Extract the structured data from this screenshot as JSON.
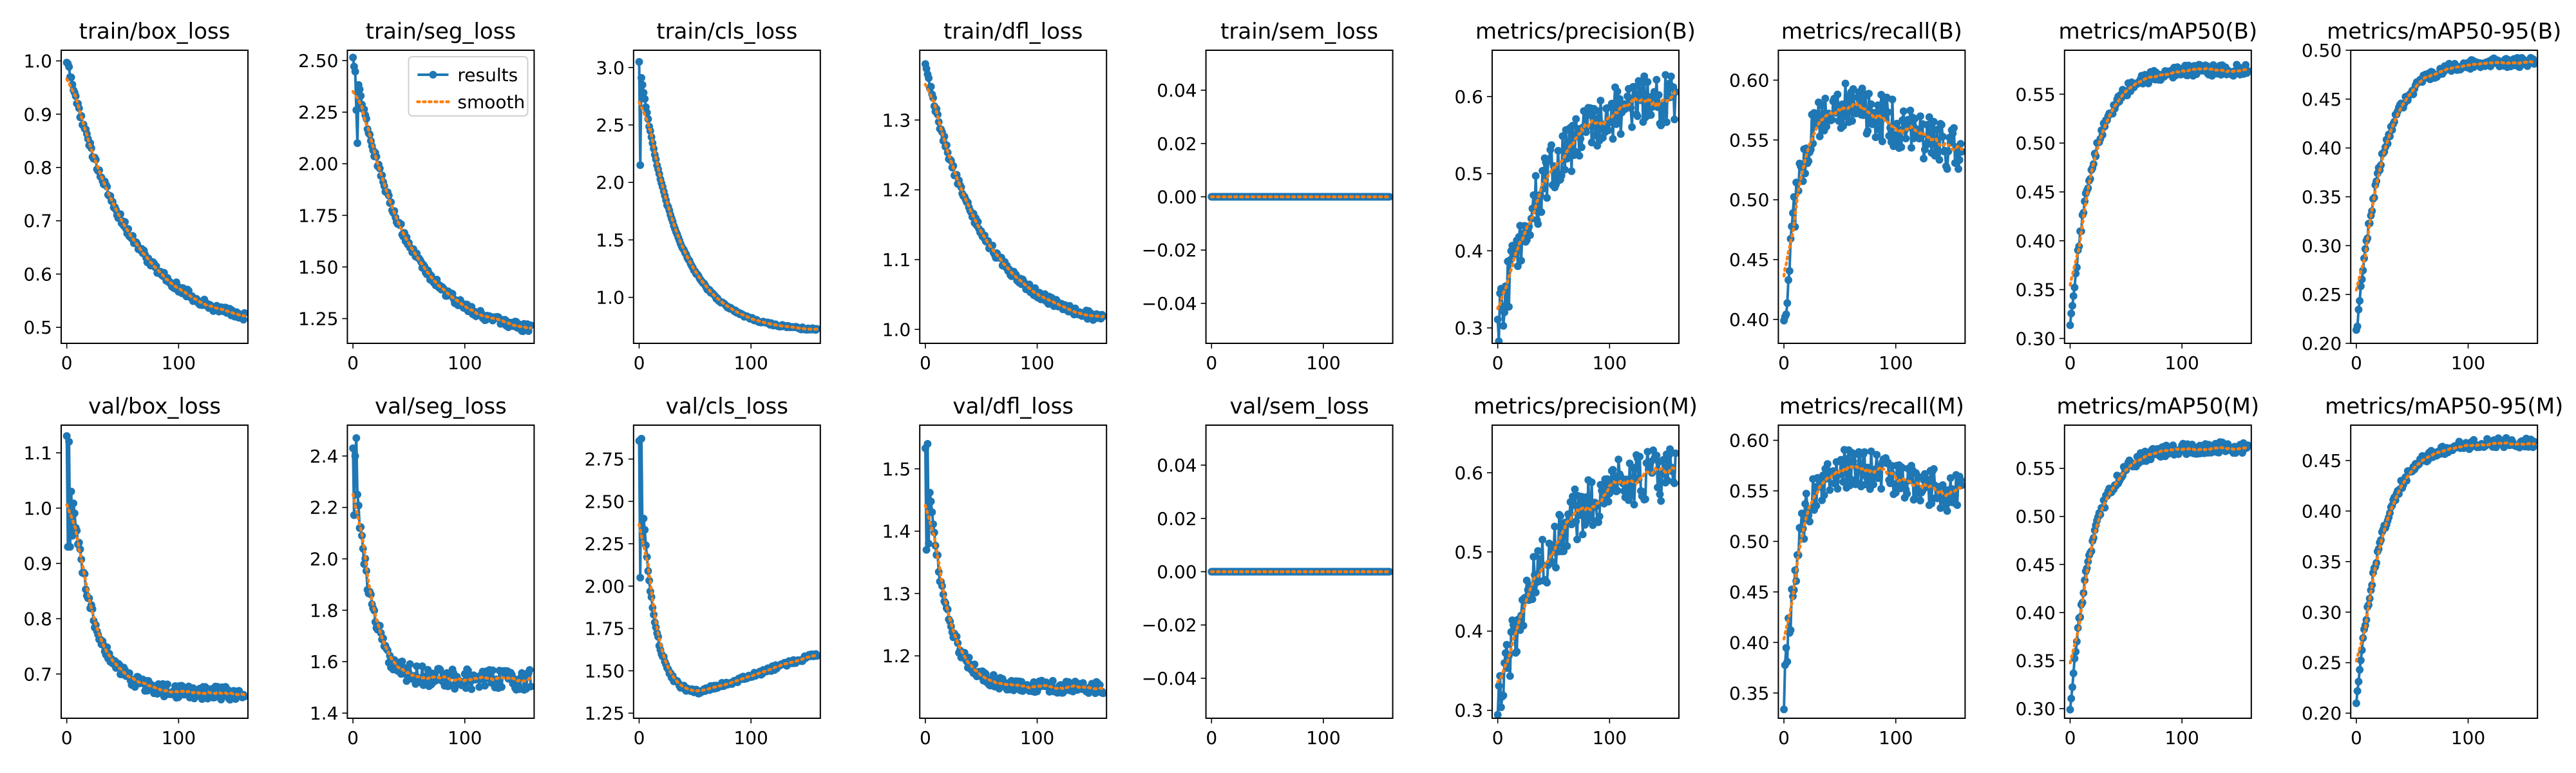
{
  "colors": {
    "results": "#1f77b4",
    "smooth": "#ff7f0e",
    "axis": "#000000",
    "background": "#ffffff"
  },
  "legend": {
    "results": "results",
    "smooth": "smooth",
    "panel": 1
  },
  "chart_data": [
    {
      "type": "line",
      "title": "train/box_loss",
      "ylim": [
        0.47,
        1.02
      ],
      "yticks": [
        "0.5",
        "0.6",
        "0.7",
        "0.8",
        "0.9",
        "1.0"
      ],
      "xlim": [
        -5,
        162
      ],
      "xticks": [
        "0",
        "100"
      ],
      "shape": {
        "kind": "decay",
        "start": 1.0,
        "end": 0.49,
        "k": 0.018,
        "noise": 0.008,
        "points": 160
      },
      "series": [
        {
          "name": "results"
        },
        {
          "name": "smooth"
        }
      ]
    },
    {
      "type": "line",
      "title": "train/seg_loss",
      "ylim": [
        1.13,
        2.55
      ],
      "yticks": [
        "1.25",
        "1.50",
        "1.75",
        "2.00",
        "2.25",
        "2.50"
      ],
      "xlim": [
        -5,
        162
      ],
      "xticks": [
        "0",
        "100"
      ],
      "shape": {
        "kind": "decay",
        "start": 2.52,
        "end": 1.16,
        "k": 0.022,
        "noise": 0.02,
        "spikes": [
          [
            3,
            2.26
          ],
          [
            4,
            2.1
          ]
        ],
        "points": 160
      },
      "series": [
        {
          "name": "results"
        },
        {
          "name": "smooth"
        }
      ]
    },
    {
      "type": "line",
      "title": "train/cls_loss",
      "ylim": [
        0.6,
        3.15
      ],
      "yticks": [
        "1.0",
        "1.5",
        "2.0",
        "2.5",
        "3.0"
      ],
      "xlim": [
        -5,
        162
      ],
      "xticks": [
        "0",
        "100"
      ],
      "shape": {
        "kind": "decay",
        "start": 3.05,
        "end": 0.7,
        "k": 0.03,
        "noise": 0.01,
        "spikes": [
          [
            1,
            2.15
          ]
        ],
        "points": 160
      },
      "series": [
        {
          "name": "results"
        },
        {
          "name": "smooth"
        }
      ]
    },
    {
      "type": "line",
      "title": "train/dfl_loss",
      "ylim": [
        0.98,
        1.4
      ],
      "yticks": [
        "1.0",
        "1.1",
        "1.2",
        "1.3"
      ],
      "xlim": [
        -5,
        162
      ],
      "xticks": [
        "0",
        "100"
      ],
      "shape": {
        "kind": "decay",
        "start": 1.38,
        "end": 1.0,
        "k": 0.02,
        "noise": 0.006,
        "points": 160
      },
      "series": [
        {
          "name": "results"
        },
        {
          "name": "smooth"
        }
      ]
    },
    {
      "type": "line",
      "title": "train/sem_loss",
      "ylim": [
        -0.055,
        0.055
      ],
      "yticks": [
        "−0.04",
        "−0.02",
        "0.00",
        "0.02",
        "0.04"
      ],
      "ytickvals": [
        -0.04,
        -0.02,
        0,
        0.02,
        0.04
      ],
      "xlim": [
        -5,
        162
      ],
      "xticks": [
        "0",
        "100"
      ],
      "shape": {
        "kind": "flat",
        "value": 0.0,
        "points": 160
      },
      "series": [
        {
          "name": "results"
        },
        {
          "name": "smooth"
        }
      ]
    },
    {
      "type": "line",
      "title": "metrics/precision(B)",
      "ylim": [
        0.28,
        0.66
      ],
      "yticks": [
        "0.3",
        "0.4",
        "0.5",
        "0.6"
      ],
      "xlim": [
        -5,
        162
      ],
      "xticks": [
        "0",
        "100"
      ],
      "shape": {
        "kind": "rise",
        "start": 0.3,
        "end": 0.61,
        "k": 0.022,
        "noise": 0.035,
        "points": 160
      },
      "series": [
        {
          "name": "results"
        },
        {
          "name": "smooth"
        }
      ]
    },
    {
      "type": "line",
      "title": "metrics/recall(B)",
      "ylim": [
        0.38,
        0.625
      ],
      "yticks": [
        "0.40",
        "0.45",
        "0.50",
        "0.55",
        "0.60"
      ],
      "xlim": [
        -5,
        162
      ],
      "xticks": [
        "0",
        "100"
      ],
      "shape": {
        "kind": "hump",
        "start": 0.39,
        "peak": 0.58,
        "end": 0.54,
        "k": 0.08,
        "noise": 0.02,
        "points": 160
      },
      "series": [
        {
          "name": "results"
        },
        {
          "name": "smooth"
        }
      ]
    },
    {
      "type": "line",
      "title": "metrics/mAP50(B)",
      "ylim": [
        0.295,
        0.595
      ],
      "yticks": [
        "0.30",
        "0.35",
        "0.40",
        "0.45",
        "0.50",
        "0.55"
      ],
      "xlim": [
        -5,
        162
      ],
      "xticks": [
        "0",
        "100"
      ],
      "shape": {
        "kind": "rise",
        "start": 0.31,
        "end": 0.575,
        "k": 0.05,
        "noise": 0.006,
        "points": 160
      },
      "series": [
        {
          "name": "results"
        },
        {
          "name": "smooth"
        }
      ]
    },
    {
      "type": "line",
      "title": "metrics/mAP50-95(B)",
      "ylim": [
        0.2,
        0.5
      ],
      "yticks": [
        "0.20",
        "0.25",
        "0.30",
        "0.35",
        "0.40",
        "0.45",
        "0.50"
      ],
      "xlim": [
        -5,
        162
      ],
      "xticks": [
        "0",
        "100"
      ],
      "shape": {
        "kind": "rise",
        "start": 0.21,
        "end": 0.488,
        "k": 0.045,
        "noise": 0.005,
        "points": 160
      },
      "series": [
        {
          "name": "results"
        },
        {
          "name": "smooth"
        }
      ]
    },
    {
      "type": "line",
      "title": "val/box_loss",
      "ylim": [
        0.62,
        1.15
      ],
      "yticks": [
        "0.7",
        "0.8",
        "0.9",
        "1.0",
        "1.1"
      ],
      "xlim": [
        -5,
        162
      ],
      "xticks": [
        "0",
        "100"
      ],
      "shape": {
        "kind": "decay",
        "start": 1.12,
        "end": 0.665,
        "k": 0.05,
        "noise": 0.012,
        "spikes": [
          [
            1,
            0.93
          ],
          [
            2,
            1.12
          ],
          [
            3,
            0.93
          ],
          [
            4,
            1.03
          ],
          [
            5,
            0.95
          ]
        ],
        "points": 160
      },
      "series": [
        {
          "name": "results"
        },
        {
          "name": "smooth"
        }
      ]
    },
    {
      "type": "line",
      "title": "val/seg_loss",
      "ylim": [
        1.38,
        2.52
      ],
      "yticks": [
        "1.4",
        "1.6",
        "1.8",
        "2.0",
        "2.2",
        "2.4"
      ],
      "xlim": [
        -5,
        162
      ],
      "xticks": [
        "0",
        "100"
      ],
      "shape": {
        "kind": "decay",
        "start": 2.47,
        "end": 1.53,
        "k": 0.07,
        "noise": 0.04,
        "spikes": [
          [
            1,
            2.17
          ],
          [
            2,
            2.4
          ],
          [
            3,
            2.47
          ],
          [
            4,
            2.25
          ]
        ],
        "points": 160
      },
      "series": [
        {
          "name": "results"
        },
        {
          "name": "smooth"
        }
      ]
    },
    {
      "type": "line",
      "title": "val/cls_loss",
      "ylim": [
        1.22,
        2.95
      ],
      "yticks": [
        "1.25",
        "1.50",
        "1.75",
        "2.00",
        "2.25",
        "2.50",
        "2.75"
      ],
      "xlim": [
        -5,
        162
      ],
      "xticks": [
        "0",
        "100"
      ],
      "shape": {
        "kind": "ushape",
        "start": 2.87,
        "min": 1.36,
        "minAt": 50,
        "end": 1.6,
        "k": 0.09,
        "noise": 0.015,
        "spikes": [
          [
            1,
            2.05
          ],
          [
            2,
            2.87
          ],
          [
            3,
            2.27
          ]
        ],
        "points": 160
      },
      "series": [
        {
          "name": "results"
        },
        {
          "name": "smooth"
        }
      ]
    },
    {
      "type": "line",
      "title": "val/dfl_loss",
      "ylim": [
        1.1,
        1.57
      ],
      "yticks": [
        "1.2",
        "1.3",
        "1.4",
        "1.5"
      ],
      "xlim": [
        -5,
        162
      ],
      "xticks": [
        "0",
        "100"
      ],
      "shape": {
        "kind": "decay",
        "start": 1.54,
        "end": 1.15,
        "k": 0.06,
        "noise": 0.01,
        "spikes": [
          [
            1,
            1.37
          ],
          [
            2,
            1.54
          ],
          [
            3,
            1.38
          ]
        ],
        "points": 160
      },
      "series": [
        {
          "name": "results"
        },
        {
          "name": "smooth"
        }
      ]
    },
    {
      "type": "line",
      "title": "val/sem_loss",
      "ylim": [
        -0.055,
        0.055
      ],
      "yticks": [
        "−0.04",
        "−0.02",
        "0.00",
        "0.02",
        "0.04"
      ],
      "ytickvals": [
        -0.04,
        -0.02,
        0,
        0.02,
        0.04
      ],
      "xlim": [
        -5,
        162
      ],
      "xticks": [
        "0",
        "100"
      ],
      "shape": {
        "kind": "flat",
        "value": 0.0,
        "points": 160
      },
      "series": [
        {
          "name": "results"
        },
        {
          "name": "smooth"
        }
      ]
    },
    {
      "type": "line",
      "title": "metrics/precision(M)",
      "ylim": [
        0.29,
        0.66
      ],
      "yticks": [
        "0.3",
        "0.4",
        "0.5",
        "0.6"
      ],
      "xlim": [
        -5,
        162
      ],
      "xticks": [
        "0",
        "100"
      ],
      "shape": {
        "kind": "rise",
        "start": 0.31,
        "end": 0.61,
        "k": 0.022,
        "noise": 0.035,
        "points": 160
      },
      "series": [
        {
          "name": "results"
        },
        {
          "name": "smooth"
        }
      ]
    },
    {
      "type": "line",
      "title": "metrics/recall(M)",
      "ylim": [
        0.325,
        0.615
      ],
      "yticks": [
        "0.35",
        "0.40",
        "0.45",
        "0.50",
        "0.55",
        "0.60"
      ],
      "xlim": [
        -5,
        162
      ],
      "xticks": [
        "0",
        "100"
      ],
      "shape": {
        "kind": "hump",
        "start": 0.34,
        "peak": 0.575,
        "end": 0.545,
        "k": 0.08,
        "noise": 0.02,
        "points": 160
      },
      "series": [
        {
          "name": "results"
        },
        {
          "name": "smooth"
        }
      ]
    },
    {
      "type": "line",
      "title": "metrics/mAP50(M)",
      "ylim": [
        0.29,
        0.595
      ],
      "yticks": [
        "0.30",
        "0.35",
        "0.40",
        "0.45",
        "0.50",
        "0.55"
      ],
      "xlim": [
        -5,
        162
      ],
      "xticks": [
        "0",
        "100"
      ],
      "shape": {
        "kind": "rise",
        "start": 0.3,
        "end": 0.572,
        "k": 0.05,
        "noise": 0.006,
        "points": 160
      },
      "series": [
        {
          "name": "results"
        },
        {
          "name": "smooth"
        }
      ]
    },
    {
      "type": "line",
      "title": "metrics/mAP50-95(M)",
      "ylim": [
        0.195,
        0.485
      ],
      "yticks": [
        "0.20",
        "0.25",
        "0.30",
        "0.35",
        "0.40",
        "0.45"
      ],
      "xlim": [
        -5,
        162
      ],
      "xticks": [
        "0",
        "100"
      ],
      "shape": {
        "kind": "rise",
        "start": 0.21,
        "end": 0.468,
        "k": 0.045,
        "noise": 0.005,
        "points": 160
      },
      "series": [
        {
          "name": "results"
        },
        {
          "name": "smooth"
        }
      ]
    }
  ]
}
